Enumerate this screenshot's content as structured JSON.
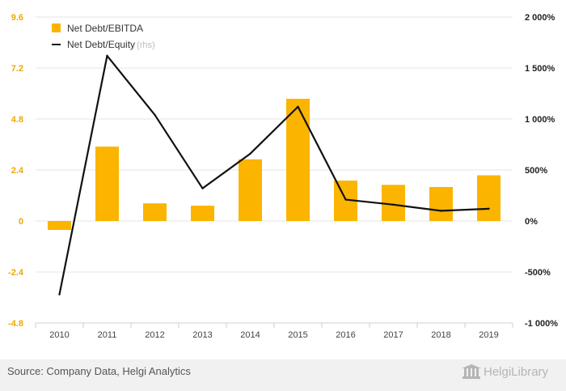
{
  "chart_data": {
    "type": "bar",
    "categories": [
      "2010",
      "2011",
      "2012",
      "2013",
      "2014",
      "2015",
      "2016",
      "2017",
      "2018",
      "2019"
    ],
    "series": [
      {
        "name": "Net Debt/EBITDA",
        "type": "bar",
        "axis": "left",
        "color": "#fbb400",
        "values": [
          -0.42,
          3.5,
          0.83,
          0.72,
          2.9,
          5.75,
          1.9,
          1.7,
          1.6,
          2.15
        ]
      },
      {
        "name": "Net Debt/Equity",
        "type": "line",
        "axis": "right",
        "color": "#111111",
        "values": [
          -720,
          1620,
          1040,
          320,
          660,
          1120,
          210,
          160,
          100,
          120
        ]
      }
    ],
    "y_left": {
      "ticks": [
        "9.6",
        "7.2",
        "4.8",
        "2.4",
        "0",
        "-2.4",
        "-4.8"
      ],
      "tick_values": [
        9.6,
        7.2,
        4.8,
        2.4,
        0,
        -2.4,
        -4.8
      ],
      "ylim": [
        -4.8,
        9.6
      ]
    },
    "y_right": {
      "ticks": [
        "2 000%",
        "1 500%",
        "1 000%",
        "500%",
        "0%",
        "-500%",
        "-1 000%"
      ],
      "tick_values": [
        2000,
        1500,
        1000,
        500,
        0,
        -500,
        -1000
      ],
      "ylim": [
        -1000,
        2000
      ]
    },
    "legend": {
      "placement": "top-left",
      "bar_label": "Net Debt/EBITDA",
      "line_label": "Net Debt/Equity",
      "line_note": "(rhs)"
    },
    "grid": true
  },
  "footer": {
    "source": "Source: Company Data, Helgi Analytics",
    "brand": "HelgiLibrary"
  }
}
